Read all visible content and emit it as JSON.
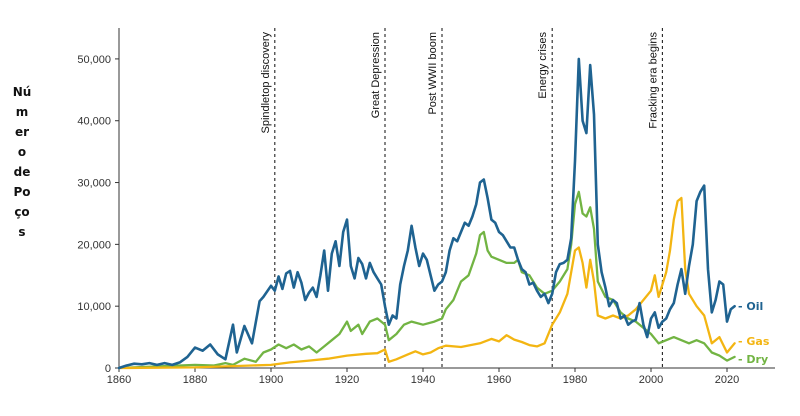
{
  "chart_data": {
    "type": "line",
    "title": "",
    "xlabel": "",
    "ylabel": "Número de Poços",
    "xlim": [
      1860,
      2030
    ],
    "ylim": [
      0,
      55000
    ],
    "x_ticks": [
      1860,
      1880,
      1900,
      1920,
      1940,
      1960,
      1980,
      2000,
      2020
    ],
    "y_ticks": [
      0,
      10000,
      20000,
      30000,
      40000,
      50000
    ],
    "y_tick_labels": [
      "0",
      "10,000",
      "20,000",
      "30,000",
      "40,000",
      "50,000"
    ],
    "grid": false,
    "events": [
      {
        "year": 1901,
        "label": "Spindletop discovery"
      },
      {
        "year": 1930,
        "label": "Great Depression"
      },
      {
        "year": 1945,
        "label": "Post WWII boom"
      },
      {
        "year": 1974,
        "label": "Energy crises"
      },
      {
        "year": 2003,
        "label": "Fracking era begins"
      }
    ],
    "series": [
      {
        "name": "Oil",
        "legend": "- Oil",
        "color": "#1f6391",
        "points": [
          [
            1860,
            0
          ],
          [
            1862,
            400
          ],
          [
            1864,
            700
          ],
          [
            1866,
            600
          ],
          [
            1868,
            800
          ],
          [
            1870,
            500
          ],
          [
            1872,
            800
          ],
          [
            1874,
            500
          ],
          [
            1876,
            900
          ],
          [
            1878,
            1800
          ],
          [
            1880,
            3300
          ],
          [
            1882,
            2800
          ],
          [
            1884,
            3800
          ],
          [
            1886,
            2200
          ],
          [
            1888,
            1400
          ],
          [
            1890,
            7000
          ],
          [
            1891,
            2500
          ],
          [
            1893,
            6800
          ],
          [
            1895,
            4000
          ],
          [
            1897,
            10800
          ],
          [
            1898,
            11500
          ],
          [
            1900,
            13300
          ],
          [
            1901,
            12500
          ],
          [
            1902,
            14800
          ],
          [
            1903,
            12800
          ],
          [
            1904,
            15300
          ],
          [
            1905,
            15700
          ],
          [
            1906,
            13000
          ],
          [
            1907,
            15500
          ],
          [
            1908,
            13800
          ],
          [
            1909,
            11000
          ],
          [
            1910,
            12200
          ],
          [
            1911,
            13000
          ],
          [
            1912,
            11500
          ],
          [
            1913,
            15000
          ],
          [
            1914,
            19000
          ],
          [
            1915,
            12500
          ],
          [
            1916,
            18500
          ],
          [
            1917,
            20500
          ],
          [
            1918,
            16500
          ],
          [
            1919,
            22000
          ],
          [
            1920,
            24000
          ],
          [
            1921,
            16500
          ],
          [
            1922,
            14500
          ],
          [
            1923,
            17800
          ],
          [
            1924,
            16800
          ],
          [
            1925,
            14500
          ],
          [
            1926,
            17000
          ],
          [
            1927,
            15500
          ],
          [
            1928,
            14500
          ],
          [
            1929,
            13500
          ],
          [
            1930,
            10000
          ],
          [
            1931,
            7000
          ],
          [
            1932,
            8500
          ],
          [
            1933,
            8000
          ],
          [
            1934,
            13500
          ],
          [
            1935,
            16500
          ],
          [
            1936,
            19000
          ],
          [
            1937,
            23000
          ],
          [
            1938,
            19500
          ],
          [
            1939,
            16500
          ],
          [
            1940,
            18500
          ],
          [
            1941,
            17500
          ],
          [
            1942,
            15000
          ],
          [
            1943,
            12500
          ],
          [
            1944,
            13500
          ],
          [
            1945,
            14000
          ],
          [
            1946,
            15500
          ],
          [
            1947,
            19000
          ],
          [
            1948,
            21000
          ],
          [
            1949,
            20500
          ],
          [
            1950,
            22000
          ],
          [
            1951,
            23500
          ],
          [
            1952,
            23000
          ],
          [
            1953,
            24500
          ],
          [
            1954,
            26500
          ],
          [
            1955,
            30000
          ],
          [
            1956,
            30500
          ],
          [
            1957,
            27500
          ],
          [
            1958,
            24000
          ],
          [
            1959,
            23500
          ],
          [
            1960,
            22000
          ],
          [
            1961,
            21500
          ],
          [
            1962,
            20500
          ],
          [
            1963,
            19500
          ],
          [
            1964,
            19500
          ],
          [
            1965,
            17500
          ],
          [
            1966,
            16000
          ],
          [
            1967,
            15500
          ],
          [
            1968,
            13500
          ],
          [
            1969,
            13800
          ],
          [
            1970,
            12500
          ],
          [
            1971,
            11500
          ],
          [
            1972,
            12000
          ],
          [
            1973,
            10500
          ],
          [
            1974,
            12000
          ],
          [
            1975,
            15500
          ],
          [
            1976,
            16800
          ],
          [
            1977,
            17000
          ],
          [
            1978,
            17500
          ],
          [
            1979,
            21000
          ],
          [
            1980,
            33500
          ],
          [
            1981,
            50000
          ],
          [
            1982,
            40000
          ],
          [
            1983,
            38000
          ],
          [
            1984,
            49000
          ],
          [
            1985,
            41000
          ],
          [
            1986,
            20000
          ],
          [
            1987,
            15500
          ],
          [
            1988,
            13000
          ],
          [
            1989,
            10000
          ],
          [
            1990,
            11000
          ],
          [
            1991,
            10500
          ],
          [
            1992,
            8000
          ],
          [
            1993,
            8500
          ],
          [
            1994,
            7000
          ],
          [
            1995,
            7500
          ],
          [
            1996,
            7800
          ],
          [
            1997,
            10500
          ],
          [
            1998,
            7000
          ],
          [
            1999,
            5000
          ],
          [
            2000,
            8000
          ],
          [
            2001,
            9000
          ],
          [
            2002,
            6500
          ],
          [
            2003,
            7500
          ],
          [
            2004,
            8000
          ],
          [
            2005,
            9500
          ],
          [
            2006,
            10500
          ],
          [
            2007,
            13500
          ],
          [
            2008,
            16000
          ],
          [
            2009,
            12000
          ],
          [
            2010,
            16500
          ],
          [
            2011,
            20000
          ],
          [
            2012,
            27000
          ],
          [
            2013,
            28500
          ],
          [
            2014,
            29500
          ],
          [
            2015,
            16000
          ],
          [
            2016,
            9000
          ],
          [
            2017,
            11000
          ],
          [
            2018,
            14000
          ],
          [
            2019,
            13500
          ],
          [
            2020,
            7500
          ],
          [
            2021,
            9500
          ],
          [
            2022,
            10000
          ]
        ]
      },
      {
        "name": "Gas",
        "legend": "- Gas",
        "color": "#f3b512",
        "points": [
          [
            1860,
            0
          ],
          [
            1880,
            100
          ],
          [
            1890,
            300
          ],
          [
            1900,
            500
          ],
          [
            1905,
            900
          ],
          [
            1910,
            1200
          ],
          [
            1915,
            1500
          ],
          [
            1920,
            2000
          ],
          [
            1925,
            2300
          ],
          [
            1928,
            2400
          ],
          [
            1930,
            3000
          ],
          [
            1931,
            1000
          ],
          [
            1933,
            1400
          ],
          [
            1936,
            2200
          ],
          [
            1938,
            2700
          ],
          [
            1940,
            2200
          ],
          [
            1942,
            2500
          ],
          [
            1944,
            3200
          ],
          [
            1946,
            3600
          ],
          [
            1950,
            3400
          ],
          [
            1955,
            4000
          ],
          [
            1958,
            4700
          ],
          [
            1960,
            4300
          ],
          [
            1962,
            5300
          ],
          [
            1964,
            4600
          ],
          [
            1966,
            4200
          ],
          [
            1968,
            3700
          ],
          [
            1970,
            3500
          ],
          [
            1972,
            4000
          ],
          [
            1974,
            7000
          ],
          [
            1976,
            9000
          ],
          [
            1978,
            12000
          ],
          [
            1980,
            19000
          ],
          [
            1981,
            19500
          ],
          [
            1982,
            17000
          ],
          [
            1983,
            13000
          ],
          [
            1984,
            17500
          ],
          [
            1985,
            14000
          ],
          [
            1986,
            8500
          ],
          [
            1988,
            8000
          ],
          [
            1990,
            8500
          ],
          [
            1992,
            8000
          ],
          [
            1994,
            8500
          ],
          [
            1996,
            9500
          ],
          [
            1998,
            11000
          ],
          [
            2000,
            12500
          ],
          [
            2001,
            15000
          ],
          [
            2002,
            11500
          ],
          [
            2003,
            13500
          ],
          [
            2004,
            15500
          ],
          [
            2005,
            19000
          ],
          [
            2006,
            24000
          ],
          [
            2007,
            27000
          ],
          [
            2008,
            27500
          ],
          [
            2009,
            16000
          ],
          [
            2010,
            12000
          ],
          [
            2012,
            10000
          ],
          [
            2014,
            8500
          ],
          [
            2016,
            4000
          ],
          [
            2018,
            5000
          ],
          [
            2020,
            2500
          ],
          [
            2022,
            4000
          ]
        ]
      },
      {
        "name": "Dry",
        "legend": "- Dry",
        "color": "#72b443",
        "points": [
          [
            1860,
            0
          ],
          [
            1880,
            500
          ],
          [
            1885,
            400
          ],
          [
            1888,
            800
          ],
          [
            1890,
            500
          ],
          [
            1893,
            1500
          ],
          [
            1896,
            1000
          ],
          [
            1898,
            2500
          ],
          [
            1900,
            3000
          ],
          [
            1902,
            3800
          ],
          [
            1904,
            3200
          ],
          [
            1906,
            3800
          ],
          [
            1908,
            3000
          ],
          [
            1910,
            3500
          ],
          [
            1912,
            2500
          ],
          [
            1914,
            3500
          ],
          [
            1916,
            4500
          ],
          [
            1918,
            5500
          ],
          [
            1920,
            7500
          ],
          [
            1921,
            6000
          ],
          [
            1923,
            7000
          ],
          [
            1924,
            5500
          ],
          [
            1926,
            7500
          ],
          [
            1928,
            8000
          ],
          [
            1930,
            7000
          ],
          [
            1931,
            4500
          ],
          [
            1933,
            5500
          ],
          [
            1935,
            7000
          ],
          [
            1937,
            7500
          ],
          [
            1940,
            7000
          ],
          [
            1943,
            7500
          ],
          [
            1945,
            8000
          ],
          [
            1946,
            9500
          ],
          [
            1948,
            11000
          ],
          [
            1950,
            14000
          ],
          [
            1952,
            15000
          ],
          [
            1954,
            18500
          ],
          [
            1955,
            21500
          ],
          [
            1956,
            22000
          ],
          [
            1957,
            19000
          ],
          [
            1958,
            18000
          ],
          [
            1960,
            17500
          ],
          [
            1962,
            17000
          ],
          [
            1964,
            17000
          ],
          [
            1965,
            17500
          ],
          [
            1966,
            15500
          ],
          [
            1968,
            15000
          ],
          [
            1970,
            13000
          ],
          [
            1972,
            12000
          ],
          [
            1974,
            12500
          ],
          [
            1976,
            14000
          ],
          [
            1978,
            16000
          ],
          [
            1979,
            20000
          ],
          [
            1980,
            26500
          ],
          [
            1981,
            28500
          ],
          [
            1982,
            25000
          ],
          [
            1983,
            24500
          ],
          [
            1984,
            26000
          ],
          [
            1985,
            22500
          ],
          [
            1986,
            14000
          ],
          [
            1988,
            11500
          ],
          [
            1990,
            11000
          ],
          [
            1992,
            9000
          ],
          [
            1994,
            8000
          ],
          [
            1996,
            7500
          ],
          [
            1998,
            6500
          ],
          [
            2000,
            5500
          ],
          [
            2002,
            4000
          ],
          [
            2004,
            4500
          ],
          [
            2006,
            5000
          ],
          [
            2008,
            4500
          ],
          [
            2010,
            4000
          ],
          [
            2012,
            4500
          ],
          [
            2014,
            4000
          ],
          [
            2016,
            2500
          ],
          [
            2018,
            2000
          ],
          [
            2020,
            1200
          ],
          [
            2022,
            1800
          ]
        ]
      }
    ]
  }
}
